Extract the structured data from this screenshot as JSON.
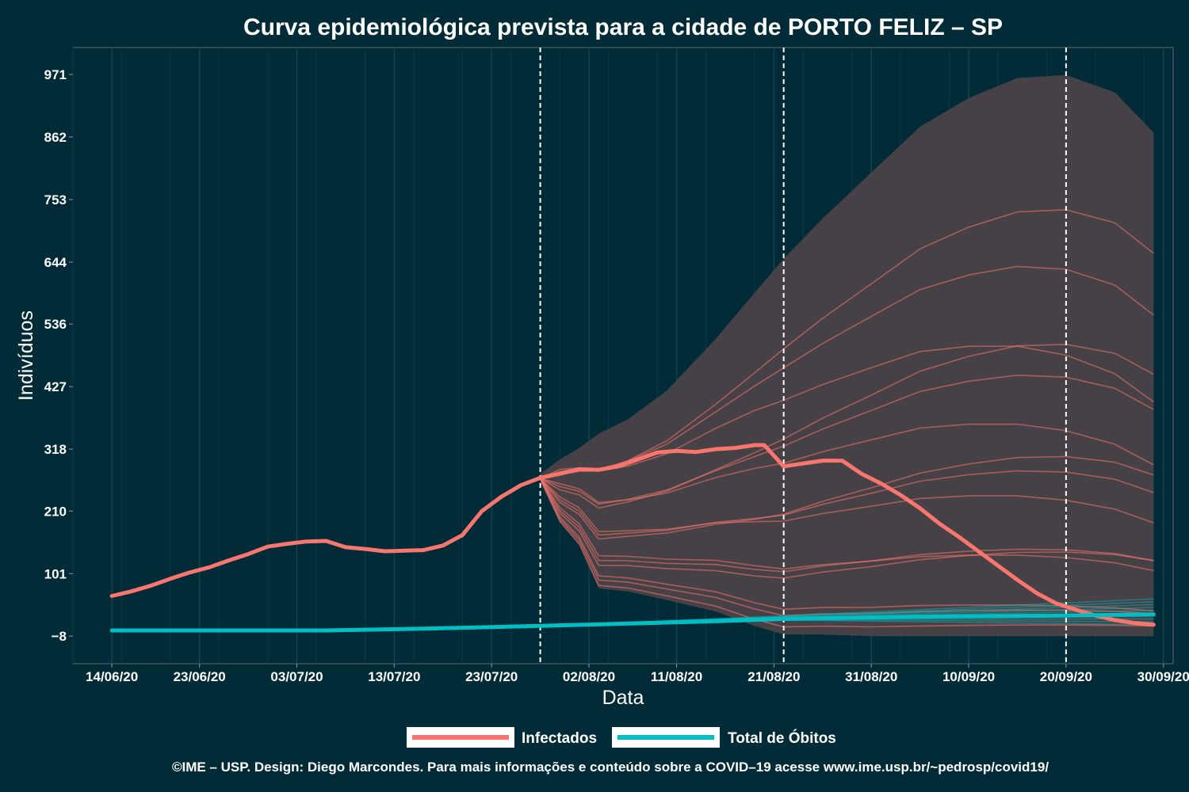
{
  "chart_data": {
    "type": "line",
    "title": "Curva epidemiológica prevista para a cidade de PORTO FELIZ – SP",
    "xlabel": "Data",
    "ylabel": "Indivíduos",
    "x_range": [
      "2020-06-10",
      "2020-10-01"
    ],
    "x_ticks": [
      {
        "date": "2020-06-14",
        "label": "14/06/20"
      },
      {
        "date": "2020-06-23",
        "label": "23/06/20"
      },
      {
        "date": "2020-07-03",
        "label": "03/07/20"
      },
      {
        "date": "2020-07-13",
        "label": "13/07/20"
      },
      {
        "date": "2020-07-23",
        "label": "23/07/20"
      },
      {
        "date": "2020-08-02",
        "label": "02/08/20"
      },
      {
        "date": "2020-08-11",
        "label": "11/08/20"
      },
      {
        "date": "2020-08-21",
        "label": "21/08/20"
      },
      {
        "date": "2020-08-31",
        "label": "31/08/20"
      },
      {
        "date": "2020-09-10",
        "label": "10/09/20"
      },
      {
        "date": "2020-09-20",
        "label": "20/09/20"
      },
      {
        "date": "2020-09-30",
        "label": "30/09/20"
      }
    ],
    "y_ticks": [
      -8,
      101,
      210,
      318,
      427,
      536,
      644,
      753,
      862,
      971
    ],
    "ylim": [
      -56,
      1018
    ],
    "vlines": [
      "2020-07-28",
      "2020-08-22",
      "2020-09-20"
    ],
    "band": {
      "name": "Infectados (intervalo)",
      "x": [
        "2020-07-28",
        "2020-07-30",
        "2020-08-01",
        "2020-08-03",
        "2020-08-06",
        "2020-08-10",
        "2020-08-15",
        "2020-08-19",
        "2020-08-22",
        "2020-08-26",
        "2020-08-31",
        "2020-09-05",
        "2020-09-10",
        "2020-09-15",
        "2020-09-20",
        "2020-09-25",
        "2020-09-29"
      ],
      "upper": [
        275,
        300,
        320,
        345,
        370,
        420,
        510,
        590,
        650,
        720,
        800,
        880,
        930,
        965,
        970,
        940,
        870
      ],
      "lower": [
        260,
        190,
        150,
        75,
        70,
        55,
        35,
        10,
        -5,
        -5,
        -8,
        -8,
        -8,
        -8,
        -8,
        -8,
        -8
      ]
    },
    "series": [
      {
        "name": "Infectados",
        "x": [
          "2020-06-14",
          "2020-06-16",
          "2020-06-18",
          "2020-06-20",
          "2020-06-22",
          "2020-06-24",
          "2020-06-26",
          "2020-06-28",
          "2020-06-30",
          "2020-07-02",
          "2020-07-04",
          "2020-07-06",
          "2020-07-08",
          "2020-07-10",
          "2020-07-12",
          "2020-07-14",
          "2020-07-16",
          "2020-07-18",
          "2020-07-20",
          "2020-07-22",
          "2020-07-24",
          "2020-07-26",
          "2020-07-28",
          "2020-07-30",
          "2020-08-01",
          "2020-08-03",
          "2020-08-05",
          "2020-08-07",
          "2020-08-09",
          "2020-08-11",
          "2020-08-13",
          "2020-08-15",
          "2020-08-17",
          "2020-08-19",
          "2020-08-20",
          "2020-08-22",
          "2020-08-24",
          "2020-08-26",
          "2020-08-28",
          "2020-08-30",
          "2020-09-01",
          "2020-09-03",
          "2020-09-05",
          "2020-09-07",
          "2020-09-09",
          "2020-09-11",
          "2020-09-13",
          "2020-09-15",
          "2020-09-17",
          "2020-09-19",
          "2020-09-21",
          "2020-09-23",
          "2020-09-25",
          "2020-09-27",
          "2020-09-29"
        ],
        "values": [
          62,
          70,
          80,
          92,
          103,
          112,
          124,
          135,
          148,
          153,
          157,
          158,
          147,
          144,
          140,
          141,
          142,
          150,
          168,
          210,
          235,
          255,
          268,
          275,
          283,
          282,
          288,
          300,
          312,
          315,
          313,
          318,
          320,
          325,
          325,
          288,
          293,
          298,
          298,
          275,
          258,
          238,
          215,
          188,
          165,
          140,
          115,
          90,
          67,
          49,
          38,
          28,
          20,
          15,
          12
        ]
      },
      {
        "name": "Total de Óbitos",
        "x": [
          "2020-06-14",
          "2020-07-06",
          "2020-07-16",
          "2020-07-28",
          "2020-08-15",
          "2020-08-22",
          "2020-09-05",
          "2020-09-20",
          "2020-09-29"
        ],
        "values": [
          2,
          2,
          5,
          10,
          18,
          22,
          26,
          28,
          30
        ]
      }
    ],
    "colors": {
      "background": "#012b36",
      "infectados": "#f8766d",
      "obitos": "#00bfc4",
      "band": "#4a4248",
      "text": "#ffffff"
    },
    "legend_position": "bottom",
    "grid": true
  },
  "legend": {
    "infectados_label": "Infectados",
    "obitos_label": "Total de Óbitos"
  },
  "caption": "©IME – USP. Design: Diego Marcondes. Para mais informações e conteúdo sobre a COVID–19 acesse www.ime.usp.br/~pedrosp/covid19/"
}
